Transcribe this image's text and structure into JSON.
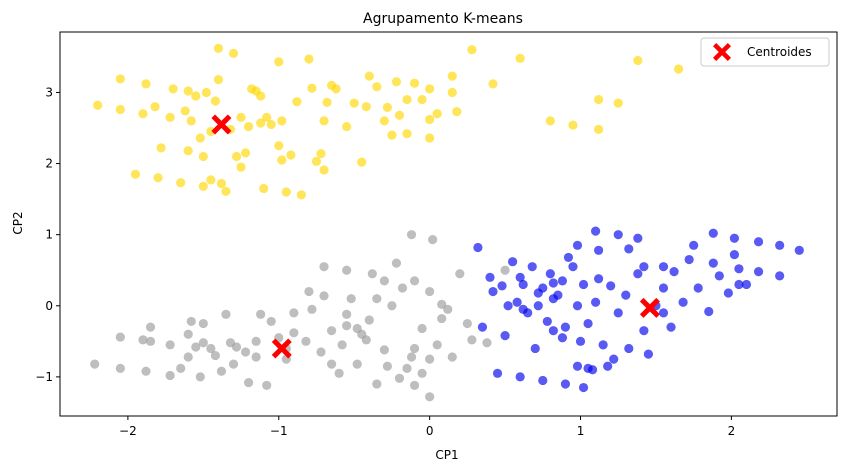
{
  "chart_data": {
    "type": "scatter",
    "title": "Agrupamento K-means",
    "xlabel": "CP1",
    "ylabel": "CP2",
    "xlim": [
      -2.45,
      2.7
    ],
    "ylim": [
      -1.55,
      3.85
    ],
    "xticks": [
      -2,
      -1,
      0,
      1,
      2
    ],
    "yticks": [
      -1,
      0,
      1,
      2,
      3
    ],
    "grid": false,
    "legend_position": "top-right",
    "legend": [
      {
        "label": "Centroides",
        "marker": "X",
        "color": "#ff0000"
      }
    ],
    "series": [
      {
        "color": "#ffd700",
        "points": [
          [
            -2.2,
            2.82
          ],
          [
            -2.05,
            3.19
          ],
          [
            -2.05,
            2.76
          ],
          [
            -1.95,
            1.85
          ],
          [
            -1.9,
            2.7
          ],
          [
            -1.88,
            3.12
          ],
          [
            -1.8,
            1.8
          ],
          [
            -1.78,
            2.22
          ],
          [
            -1.72,
            2.65
          ],
          [
            -1.7,
            3.05
          ],
          [
            -1.65,
            1.73
          ],
          [
            -1.62,
            2.74
          ],
          [
            -1.6,
            3.02
          ],
          [
            -1.58,
            2.6
          ],
          [
            -1.52,
            2.36
          ],
          [
            -1.5,
            1.68
          ],
          [
            -1.5,
            2.1
          ],
          [
            -1.48,
            3.0
          ],
          [
            -1.45,
            2.45
          ],
          [
            -1.42,
            2.88
          ],
          [
            -1.4,
            3.62
          ],
          [
            -1.4,
            3.18
          ],
          [
            -1.38,
            1.72
          ],
          [
            -1.35,
            1.61
          ],
          [
            -1.32,
            2.48
          ],
          [
            -1.3,
            3.55
          ],
          [
            -1.28,
            2.1
          ],
          [
            -1.25,
            2.65
          ],
          [
            -1.22,
            2.15
          ],
          [
            -1.18,
            3.05
          ],
          [
            -1.15,
            3.02
          ],
          [
            -1.12,
            2.57
          ],
          [
            -1.1,
            1.65
          ],
          [
            -1.08,
            2.65
          ],
          [
            -1.05,
            2.55
          ],
          [
            -1.0,
            3.43
          ],
          [
            -1.0,
            2.25
          ],
          [
            -0.98,
            2.05
          ],
          [
            -0.95,
            1.6
          ],
          [
            -0.92,
            2.12
          ],
          [
            -0.88,
            2.87
          ],
          [
            -0.85,
            1.56
          ],
          [
            -0.8,
            3.47
          ],
          [
            -0.78,
            3.06
          ],
          [
            -0.75,
            2.03
          ],
          [
            -0.72,
            2.14
          ],
          [
            -0.7,
            1.91
          ],
          [
            -0.68,
            2.86
          ],
          [
            -0.65,
            3.1
          ],
          [
            -0.55,
            2.52
          ],
          [
            -0.45,
            2.02
          ],
          [
            -0.42,
            2.8
          ],
          [
            -0.4,
            3.23
          ],
          [
            -0.35,
            3.08
          ],
          [
            -0.28,
            2.79
          ],
          [
            -0.25,
            2.4
          ],
          [
            -0.2,
            2.68
          ],
          [
            -0.15,
            2.9
          ],
          [
            -0.15,
            2.42
          ],
          [
            -0.1,
            3.13
          ],
          [
            -0.05,
            2.9
          ],
          [
            0.0,
            3.05
          ],
          [
            0.0,
            2.62
          ],
          [
            0.0,
            2.36
          ],
          [
            0.15,
            3.23
          ],
          [
            0.15,
            3.0
          ],
          [
            0.18,
            2.73
          ],
          [
            0.28,
            3.6
          ],
          [
            0.42,
            3.12
          ],
          [
            0.6,
            3.48
          ],
          [
            0.8,
            2.6
          ],
          [
            0.95,
            2.54
          ],
          [
            1.12,
            2.48
          ],
          [
            1.12,
            2.9
          ],
          [
            1.25,
            2.85
          ],
          [
            1.38,
            3.45
          ],
          [
            1.65,
            3.33
          ],
          [
            -1.82,
            2.8
          ],
          [
            -1.55,
            2.95
          ],
          [
            -1.12,
            2.95
          ],
          [
            -0.98,
            2.6
          ],
          [
            -0.62,
            3.05
          ],
          [
            -0.22,
            3.15
          ],
          [
            -0.5,
            2.85
          ],
          [
            -1.6,
            2.18
          ],
          [
            -1.25,
            1.95
          ],
          [
            -1.45,
            1.77
          ],
          [
            -1.2,
            2.52
          ],
          [
            -0.7,
            2.6
          ],
          [
            0.05,
            2.7
          ],
          [
            -0.3,
            2.6
          ]
        ]
      },
      {
        "color": "#9b9b9b",
        "points": [
          [
            -2.22,
            -0.82
          ],
          [
            -2.05,
            -0.88
          ],
          [
            -2.05,
            -0.44
          ],
          [
            -1.9,
            -0.48
          ],
          [
            -1.88,
            -0.92
          ],
          [
            -1.85,
            -0.5
          ],
          [
            -1.72,
            -0.55
          ],
          [
            -1.72,
            -0.98
          ],
          [
            -1.65,
            -0.88
          ],
          [
            -1.6,
            -0.72
          ],
          [
            -1.6,
            -0.4
          ],
          [
            -1.55,
            -0.58
          ],
          [
            -1.52,
            -1.0
          ],
          [
            -1.5,
            -0.52
          ],
          [
            -1.45,
            -0.6
          ],
          [
            -1.42,
            -0.7
          ],
          [
            -1.38,
            -0.92
          ],
          [
            -1.35,
            -0.12
          ],
          [
            -1.32,
            -0.52
          ],
          [
            -1.3,
            -0.82
          ],
          [
            -1.28,
            -0.58
          ],
          [
            -1.22,
            -0.65
          ],
          [
            -1.2,
            -1.08
          ],
          [
            -1.15,
            -0.5
          ],
          [
            -1.12,
            -0.12
          ],
          [
            -1.08,
            -1.12
          ],
          [
            -1.05,
            -0.22
          ],
          [
            -1.0,
            -0.45
          ],
          [
            -0.95,
            -0.75
          ],
          [
            -0.9,
            -0.1
          ],
          [
            -0.9,
            -0.38
          ],
          [
            -0.82,
            -0.5
          ],
          [
            -0.8,
            0.2
          ],
          [
            -0.78,
            -0.05
          ],
          [
            -0.72,
            -0.65
          ],
          [
            -0.7,
            0.55
          ],
          [
            -0.7,
            0.14
          ],
          [
            -0.65,
            -0.82
          ],
          [
            -0.6,
            -0.95
          ],
          [
            -0.55,
            -0.12
          ],
          [
            -0.55,
            0.5
          ],
          [
            -0.52,
            0.1
          ],
          [
            -0.48,
            -0.82
          ],
          [
            -0.42,
            -0.48
          ],
          [
            -0.4,
            -0.2
          ],
          [
            -0.38,
            0.45
          ],
          [
            -0.35,
            -1.1
          ],
          [
            -0.35,
            0.1
          ],
          [
            -0.3,
            -0.62
          ],
          [
            -0.28,
            -0.85
          ],
          [
            -0.22,
            0.6
          ],
          [
            -0.2,
            -1.02
          ],
          [
            -0.18,
            0.25
          ],
          [
            -0.15,
            -0.88
          ],
          [
            -0.12,
            -0.72
          ],
          [
            -0.1,
            -1.12
          ],
          [
            -0.1,
            0.35
          ],
          [
            -0.05,
            -0.95
          ],
          [
            -0.05,
            -0.32
          ],
          [
            0.0,
            -1.28
          ],
          [
            0.0,
            -0.75
          ],
          [
            0.05,
            -0.55
          ],
          [
            0.08,
            -0.18
          ],
          [
            0.12,
            -0.05
          ],
          [
            0.15,
            -0.72
          ],
          [
            0.2,
            0.45
          ],
          [
            0.28,
            -0.48
          ],
          [
            0.38,
            -0.52
          ],
          [
            0.25,
            -0.25
          ],
          [
            -1.58,
            -0.22
          ],
          [
            -0.95,
            -0.6
          ],
          [
            -0.58,
            -0.55
          ],
          [
            -0.3,
            0.35
          ],
          [
            0.0,
            0.2
          ],
          [
            -1.15,
            -0.72
          ],
          [
            -0.65,
            -0.35
          ],
          [
            -0.45,
            -0.4
          ],
          [
            -1.85,
            -0.3
          ],
          [
            -0.25,
            0.0
          ],
          [
            -0.12,
            1.0
          ],
          [
            0.02,
            0.93
          ],
          [
            0.08,
            0.02
          ],
          [
            0.5,
            0.5
          ],
          [
            -0.55,
            -0.28
          ],
          [
            -0.48,
            -0.32
          ],
          [
            -1.5,
            -0.25
          ],
          [
            -0.1,
            -0.6
          ]
        ]
      },
      {
        "color": "#0000ee",
        "points": [
          [
            0.32,
            0.82
          ],
          [
            0.42,
            0.2
          ],
          [
            0.5,
            -0.42
          ],
          [
            0.55,
            0.62
          ],
          [
            0.58,
            0.05
          ],
          [
            0.62,
            0.3
          ],
          [
            0.65,
            -0.1
          ],
          [
            0.68,
            0.55
          ],
          [
            0.72,
            0.0
          ],
          [
            0.75,
            0.25
          ],
          [
            0.78,
            -0.22
          ],
          [
            0.8,
            0.45
          ],
          [
            0.82,
            0.1
          ],
          [
            0.88,
            0.35
          ],
          [
            0.9,
            -0.3
          ],
          [
            0.95,
            0.55
          ],
          [
            0.98,
            0.0
          ],
          [
            1.0,
            -0.5
          ],
          [
            1.02,
            0.3
          ],
          [
            1.05,
            -0.25
          ],
          [
            1.1,
            0.05
          ],
          [
            1.15,
            -0.55
          ],
          [
            1.2,
            0.28
          ],
          [
            1.22,
            -0.75
          ],
          [
            1.25,
            -0.1
          ],
          [
            1.3,
            0.15
          ],
          [
            1.32,
            -0.6
          ],
          [
            1.38,
            0.45
          ],
          [
            1.42,
            -0.35
          ],
          [
            1.45,
            -0.68
          ],
          [
            1.5,
            0.0
          ],
          [
            1.55,
            0.25
          ],
          [
            1.6,
            -0.3
          ],
          [
            1.62,
            0.48
          ],
          [
            1.68,
            0.05
          ],
          [
            1.72,
            0.65
          ],
          [
            1.78,
            0.25
          ],
          [
            1.85,
            -0.08
          ],
          [
            1.88,
            0.6
          ],
          [
            1.92,
            0.42
          ],
          [
            1.98,
            0.18
          ],
          [
            2.02,
            0.95
          ],
          [
            2.05,
            0.52
          ],
          [
            2.1,
            0.3
          ],
          [
            2.18,
            0.9
          ],
          [
            2.18,
            0.48
          ],
          [
            2.32,
            0.85
          ],
          [
            2.32,
            0.42
          ],
          [
            2.45,
            0.78
          ],
          [
            0.45,
            -0.95
          ],
          [
            0.6,
            -1.0
          ],
          [
            0.75,
            -1.05
          ],
          [
            0.9,
            -1.1
          ],
          [
            1.02,
            -1.15
          ],
          [
            1.08,
            -0.9
          ],
          [
            1.18,
            -0.85
          ],
          [
            0.35,
            -0.3
          ],
          [
            0.48,
            0.28
          ],
          [
            0.4,
            0.4
          ],
          [
            0.52,
            0.0
          ],
          [
            0.62,
            -0.05
          ],
          [
            0.72,
            0.18
          ],
          [
            0.82,
            -0.35
          ],
          [
            0.92,
            0.68
          ],
          [
            1.12,
            0.38
          ],
          [
            1.32,
            0.8
          ],
          [
            1.42,
            0.55
          ],
          [
            2.02,
            0.72
          ],
          [
            2.05,
            0.3
          ],
          [
            1.05,
            -0.88
          ],
          [
            0.85,
            0.15
          ],
          [
            0.7,
            -0.6
          ],
          [
            0.6,
            0.4
          ],
          [
            1.55,
            -0.1
          ],
          [
            0.82,
            0.32
          ],
          [
            0.98,
            0.85
          ],
          [
            1.1,
            1.05
          ],
          [
            1.12,
            0.78
          ],
          [
            1.25,
            1.0
          ],
          [
            1.38,
            0.95
          ],
          [
            1.55,
            0.55
          ],
          [
            1.75,
            0.85
          ],
          [
            1.88,
            1.02
          ],
          [
            0.88,
            -0.45
          ],
          [
            0.98,
            -0.85
          ]
        ]
      },
      {
        "color": "#ff0000",
        "marker": "X",
        "points": [
          [
            -1.38,
            2.55
          ],
          [
            -0.98,
            -0.6
          ],
          [
            1.46,
            -0.03
          ]
        ]
      }
    ]
  }
}
